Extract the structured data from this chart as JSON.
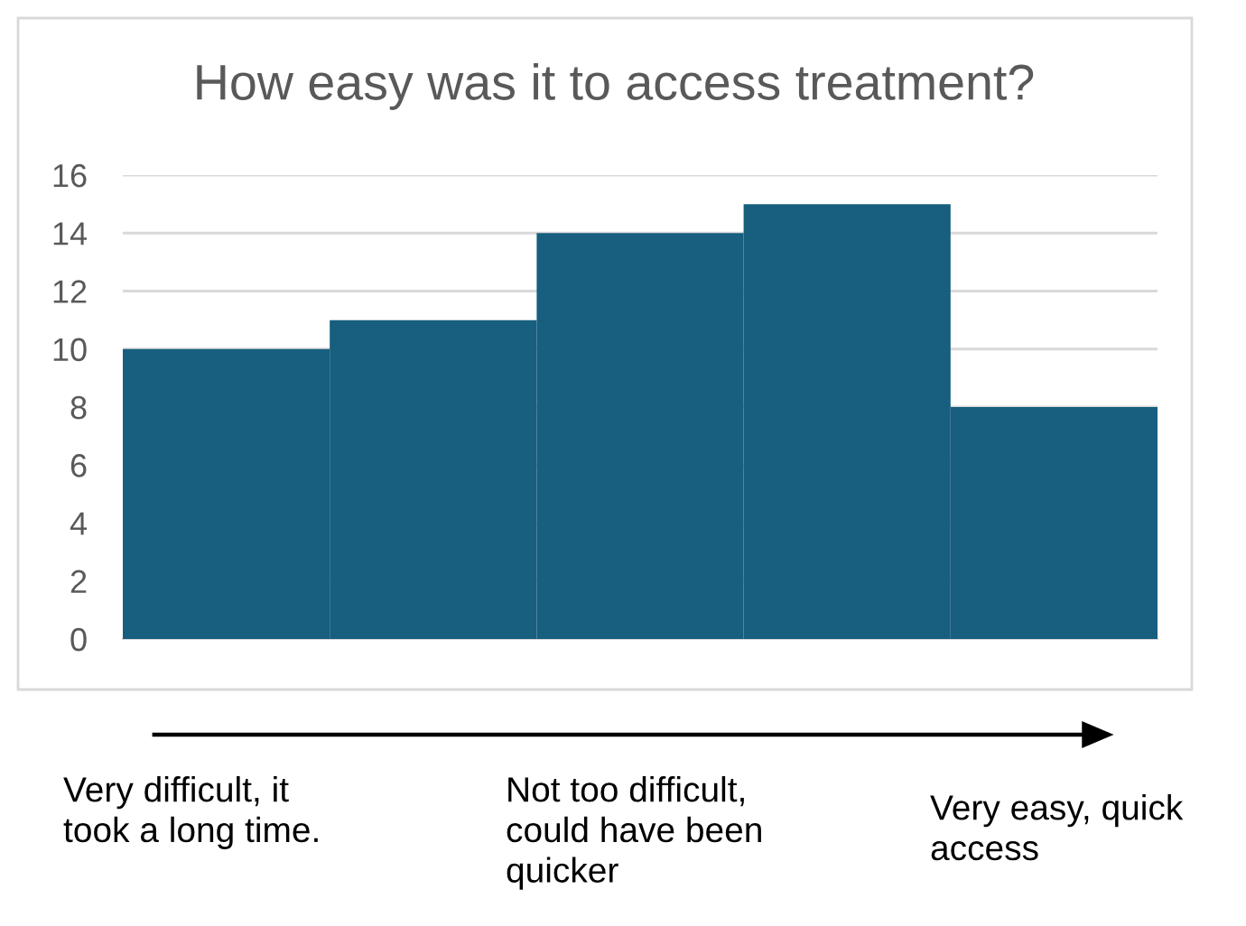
{
  "chart_data": {
    "type": "bar",
    "title": "How easy was it to access treatment?",
    "categories": [
      null,
      null,
      null,
      null,
      null
    ],
    "values": [
      10,
      11,
      14,
      15,
      8
    ],
    "color": "#175e7f",
    "ylim": [
      0,
      16
    ],
    "yticks": [
      0,
      2,
      4,
      6,
      8,
      10,
      12,
      14,
      16
    ],
    "grid": "y",
    "annotations": [
      "Very difficult, it\ntook a long time.",
      "Not too difficult,\ncould have been\nquicker",
      "Very easy, quick\naccess"
    ]
  }
}
